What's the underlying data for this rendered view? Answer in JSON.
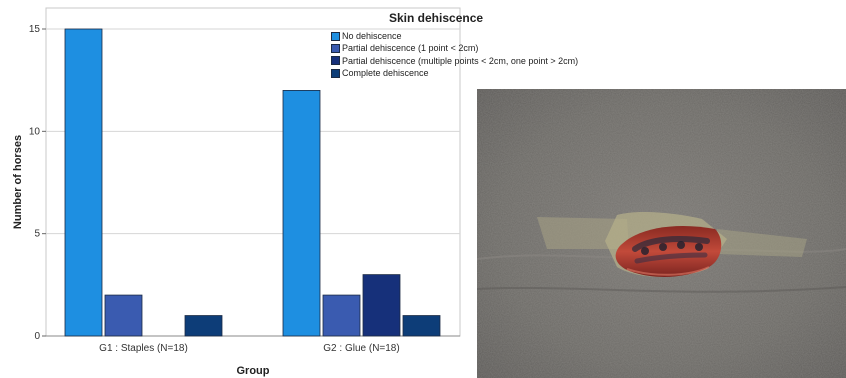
{
  "chart_data": {
    "type": "bar",
    "title": "",
    "xlabel": "Group",
    "ylabel": "Number of horses",
    "ylim": [
      0,
      15
    ],
    "yticks": [
      "0",
      "5",
      "10",
      "15"
    ],
    "grid": true,
    "legend": {
      "title": "Skin dehiscence",
      "placement": "top-right"
    },
    "categories": [
      "G1 : Staples (N=18)",
      "G2 : Glue (N=18)"
    ],
    "series": [
      {
        "name": "No dehiscence",
        "color": "#1e8fe1",
        "values": [
          15,
          12
        ]
      },
      {
        "name": "Partial dehiscence (1 point < 2cm)",
        "color": "#3a5bb0",
        "values": [
          2,
          2
        ]
      },
      {
        "name": "Partial dehiscence (multiple points < 2cm, one point > 2cm)",
        "color": "#16307a",
        "values": [
          0,
          3
        ]
      },
      {
        "name": "Complete dehiscence",
        "color": "#0d3d78",
        "values": [
          1,
          1
        ]
      }
    ]
  },
  "photo": {
    "subject": "wound-photo"
  }
}
